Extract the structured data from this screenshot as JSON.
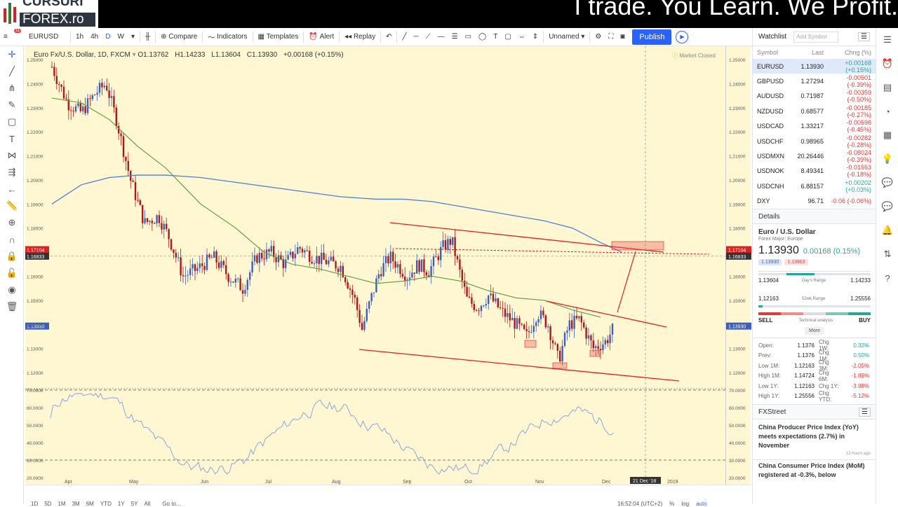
{
  "banner": {
    "brand_top": "CURSURI",
    "brand": "FOREX.ro",
    "slogan": "I trade. You Learn. We Profit."
  },
  "toolbar": {
    "symbol": "EURUSD",
    "badge": "11",
    "intervals": [
      "1h",
      "4h",
      "D",
      "W"
    ],
    "compare": "Compare",
    "indicators": "Indicators",
    "templates": "Templates",
    "alert": "Alert",
    "replay": "Replay",
    "layout_name": "Unnamed",
    "publish": "Publish"
  },
  "legend": {
    "title": "Euro Fx/U.S. Dollar, 1D, FXCM",
    "open": "O1.13762",
    "high": "H1.14233",
    "low": "L1.13604",
    "close": "C1.13930",
    "change": "+0.00168 (+0.15%)",
    "market_status": "Market Closed"
  },
  "price_axis": {
    "ticks": [
      "1.25000",
      "1.24000",
      "1.23000",
      "1.22000",
      "1.21000",
      "1.20000",
      "1.19000",
      "1.18000",
      "1.17000",
      "1.16000",
      "1.15000",
      "1.14000",
      "1.13000",
      "1.12000"
    ],
    "line_label": "1.17104",
    "crosshair_label": "1.16833",
    "last_label": "1.13930"
  },
  "rsi_axis": {
    "ticks": [
      "70.0000",
      "60.0000",
      "50.0000",
      "40.0000",
      "30.0000",
      "20.0000"
    ]
  },
  "time_axis": {
    "ticks": [
      "Apr",
      "May",
      "Jun",
      "Jul",
      "Aug",
      "Sep",
      "Oct",
      "Nov",
      "Dec",
      "2019"
    ],
    "crosshair_date": "21 Dec '18"
  },
  "bottom_bar": {
    "ranges": [
      "1D",
      "5D",
      "1M",
      "3M",
      "6M",
      "YTD",
      "1Y",
      "5Y",
      "All"
    ],
    "goto": "Go to...",
    "clock": "16:52:04 (UTC+2)",
    "scale": [
      "%",
      "log",
      "auto"
    ]
  },
  "watchlist": {
    "title": "Watchlist",
    "add_placeholder": "Add Symbol",
    "cols": {
      "symbol": "Symbol",
      "last": "Last",
      "chg": "Chng (%)"
    },
    "rows": [
      {
        "sym": "EURUSD",
        "last": "1.13930",
        "chg": "+0.00168 (+0.15%)",
        "dir": "pos"
      },
      {
        "sym": "GBPUSD",
        "last": "1.27294",
        "chg": "-0.00501 (-0.39%)",
        "dir": "neg"
      },
      {
        "sym": "AUDUSD",
        "last": "0.71987",
        "chg": "-0.00359 (-0.50%)",
        "dir": "neg"
      },
      {
        "sym": "NZDUSD",
        "last": "0.68577",
        "chg": "-0.00185 (-0.27%)",
        "dir": "neg"
      },
      {
        "sym": "USDCAD",
        "last": "1.33217",
        "chg": "-0.00596 (-0.45%)",
        "dir": "neg"
      },
      {
        "sym": "USDCHF",
        "last": "0.98965",
        "chg": "-0.00282 (-0.28%)",
        "dir": "neg"
      },
      {
        "sym": "USDMXN",
        "last": "20.26446",
        "chg": "-0.08024 (-0.39%)",
        "dir": "neg"
      },
      {
        "sym": "USDNOK",
        "last": "8.49341",
        "chg": "-0.01553 (-0.18%)",
        "dir": "neg"
      },
      {
        "sym": "USDCNH",
        "last": "6.88157",
        "chg": "+0.00202 (+0.03%)",
        "dir": "pos"
      },
      {
        "sym": "DXY",
        "last": "96.71",
        "chg": "-0.06 (-0.06%)",
        "dir": "neg"
      }
    ]
  },
  "details": {
    "title": "Details",
    "name": "Euro / U.S. Dollar",
    "sub": "Forex Major: Europe",
    "price": "1.13930",
    "change": "0.00168 (0.15%)",
    "bid": "1.13930",
    "ask": "1.13963",
    "day_low": "1.13604",
    "day_high": "1.14233",
    "day_label": "Day's Range",
    "wk_low": "1.12163",
    "wk_high": "1.25556",
    "wk_label": "52wk Range",
    "sell": "SELL",
    "buy": "BUY",
    "ta": "Technical analysis",
    "more": "More",
    "stats": [
      {
        "k": "Open:",
        "v": "1.1376",
        "k2": "Chg 1W:",
        "v2": "0.32%",
        "d": "pos"
      },
      {
        "k": "Prev:",
        "v": "1.1376",
        "k2": "Chg 1M:",
        "v2": "0.50%",
        "d": "pos"
      },
      {
        "k": "Low 1M:",
        "v": "1.12163",
        "k2": "Chg 3M:",
        "v2": "-2.05%",
        "d": "neg"
      },
      {
        "k": "High 1M:",
        "v": "1.14724",
        "k2": "Chg 6M:",
        "v2": "-1.89%",
        "d": "neg"
      },
      {
        "k": "Low 1Y:",
        "v": "1.12163",
        "k2": "Chg 1Y:",
        "v2": "-3.98%",
        "d": "neg"
      },
      {
        "k": "High 1Y:",
        "v": "1.25556",
        "k2": "Chg YTD:",
        "v2": "-5.12%",
        "d": "neg"
      }
    ]
  },
  "news": {
    "source": "FXStreet",
    "items": [
      {
        "title": "China Producer Price Index (YoY) meets expectations (2.7%) in November",
        "time": "13 hours ago"
      },
      {
        "title": "China Consumer Price Index (MoM) registered at -0.3%, below"
      }
    ]
  },
  "colors": {
    "chart_bg": "#fff7d2",
    "up": "#3b5fc0",
    "down": "#b01818",
    "ma_green": "#5a9a3a",
    "ma_blue": "#4f7fd6",
    "trend": "#e02020",
    "rsi": "#7f9ee0"
  }
}
